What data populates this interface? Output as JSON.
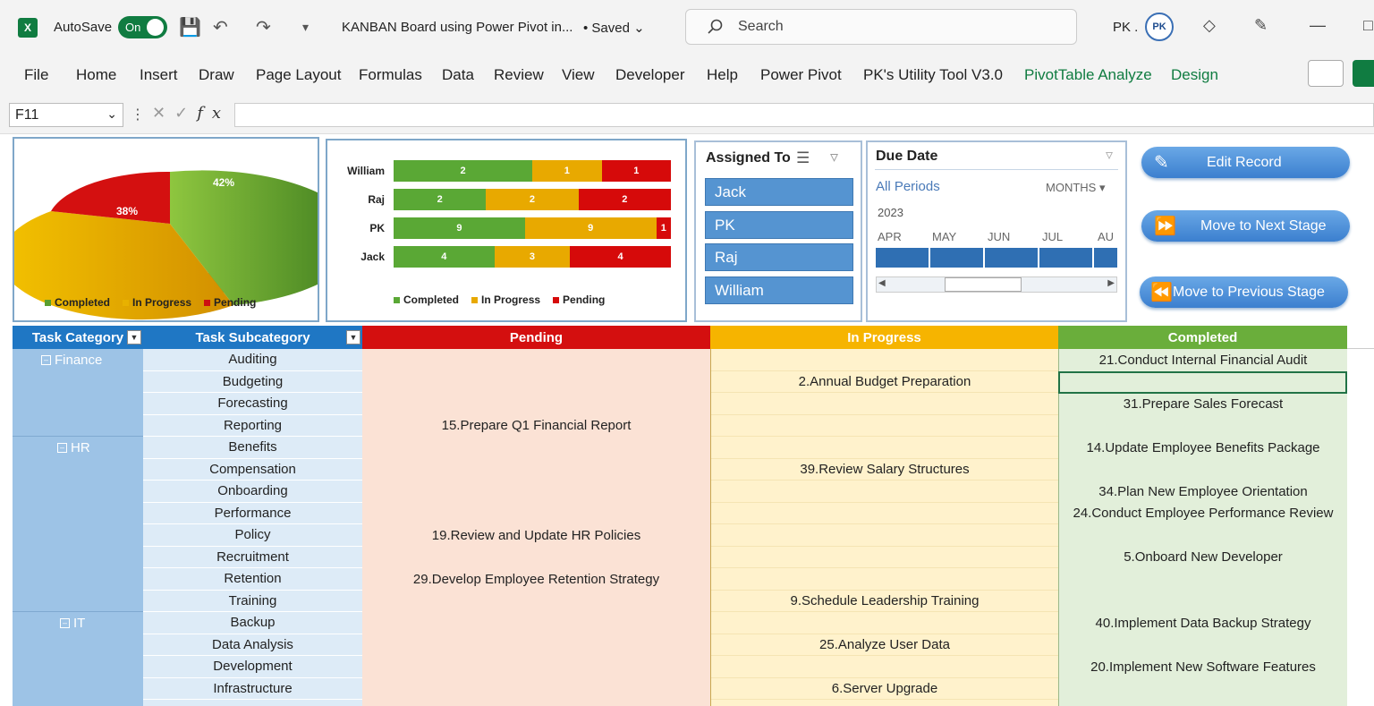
{
  "titlebar": {
    "autosave_label": "AutoSave",
    "toggle_label": "On",
    "doc_title": "KANBAN Board using Power Pivot in...",
    "saved": "• Saved",
    "search_placeholder": "Search",
    "user_initials": "PK ."
  },
  "ribbon": {
    "tabs": [
      "File",
      "Home",
      "Insert",
      "Draw",
      "Page Layout",
      "Formulas",
      "Data",
      "Review",
      "View",
      "Developer",
      "Help",
      "Power Pivot",
      "PK's Utility Tool V3.0",
      "PivotTable Analyze",
      "Design"
    ]
  },
  "formula_bar": {
    "name_box": "F11",
    "fx": "fx",
    "value": ""
  },
  "pie": {
    "labels": [
      "Completed",
      "In Progress",
      "Pending"
    ],
    "values": [
      "42%",
      "38%",
      "20%"
    ],
    "colors": [
      "#5a9e2f",
      "#e8b100",
      "#cc1111"
    ]
  },
  "chart_data": {
    "type": "bar",
    "stacked": true,
    "orientation": "horizontal",
    "categories": [
      "William",
      "Raj",
      "PK",
      "Jack"
    ],
    "series": [
      {
        "name": "Completed",
        "values": [
          2,
          2,
          9,
          4
        ],
        "color": "#5aa835"
      },
      {
        "name": "In Progress",
        "values": [
          1,
          2,
          9,
          3
        ],
        "color": "#e8a900"
      },
      {
        "name": "Pending",
        "values": [
          1,
          2,
          1,
          4
        ],
        "color": "#d60a0a"
      }
    ],
    "legend": "bottom"
  },
  "slicer_assigned": {
    "title": "Assigned To",
    "items": [
      "Jack",
      "PK",
      "Raj",
      "William"
    ]
  },
  "timeline": {
    "title": "Due Date",
    "all_periods": "All Periods",
    "level": "MONTHS",
    "year": "2023",
    "months": [
      "APR",
      "MAY",
      "JUN",
      "JUL",
      "AU"
    ]
  },
  "actions": {
    "edit": "Edit Record",
    "next": "Move to Next Stage",
    "prev": "Move to Previous Stage"
  },
  "table": {
    "headers": {
      "category": "Task Category",
      "subcategory": "Task Subcategory",
      "pending": "Pending",
      "in_progress": "In Progress",
      "completed": "Completed"
    },
    "categories": [
      "Finance",
      "HR",
      "IT"
    ],
    "subcategories": [
      "Auditing",
      "Budgeting",
      "Forecasting",
      "Reporting",
      "Benefits",
      "Compensation",
      "Onboarding",
      "Performance",
      "Policy",
      "Recruitment",
      "Retention",
      "Training",
      "Backup",
      "Data Analysis",
      "Development",
      "Infrastructure"
    ],
    "pending": [
      "",
      "",
      "",
      "15.Prepare Q1 Financial Report",
      "",
      "",
      "",
      "",
      "19.Review and Update HR Policies",
      "",
      "29.Develop Employee Retention Strategy",
      "",
      "",
      "",
      "",
      ""
    ],
    "in_progress": [
      "",
      "2.Annual Budget Preparation",
      "",
      "",
      "",
      "39.Review Salary Structures",
      "",
      "",
      "",
      "",
      "",
      "9.Schedule Leadership Training",
      "",
      "25.Analyze User Data",
      "",
      "6.Server Upgrade"
    ],
    "completed": [
      "21.Conduct Internal Financial Audit",
      "",
      "31.Prepare Sales Forecast",
      "",
      "14.Update Employee Benefits Package",
      "",
      "34.Plan New Employee Orientation",
      "24.Conduct Employee Performance Review",
      "",
      "5.Onboard New Developer",
      "",
      "",
      "40.Implement Data Backup Strategy",
      "",
      "20.Implement New Software Features",
      ""
    ]
  }
}
